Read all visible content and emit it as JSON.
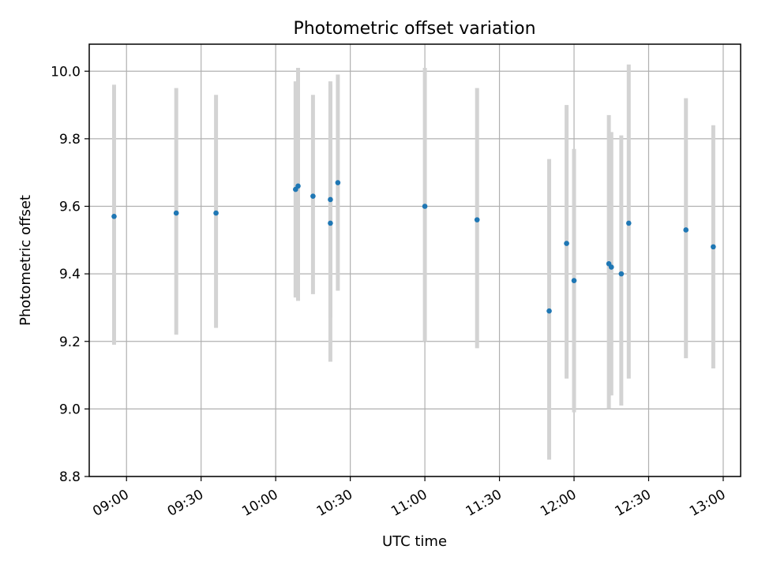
{
  "chart_data": {
    "type": "scatter",
    "title": "Photometric offset variation",
    "xlabel": "UTC time",
    "ylabel": "Photometric offset",
    "xlim": [
      "08:45",
      "13:07"
    ],
    "ylim": [
      8.8,
      10.08
    ],
    "xticks": [
      "09:00",
      "09:30",
      "10:00",
      "10:30",
      "11:00",
      "11:30",
      "12:00",
      "12:30",
      "13:00"
    ],
    "yticks": [
      "8.8",
      "9.0",
      "9.2",
      "9.4",
      "9.6",
      "9.8",
      "10.0"
    ],
    "grid": true,
    "series": [
      {
        "x": [
          "08:55",
          "09:20",
          "09:36",
          "10:08",
          "10:09",
          "10:15",
          "10:22",
          "10:22",
          "10:25",
          "11:00",
          "11:21",
          "11:50",
          "11:57",
          "12:00",
          "12:14",
          "12:15",
          "12:19",
          "12:22",
          "12:45",
          "12:56"
        ],
        "y": [
          9.57,
          9.58,
          9.58,
          9.65,
          9.66,
          9.63,
          9.62,
          9.55,
          9.67,
          9.6,
          9.56,
          9.29,
          9.49,
          9.38,
          9.43,
          9.42,
          9.4,
          9.55,
          9.53,
          9.48
        ],
        "yerr_low": [
          9.19,
          9.22,
          9.24,
          9.33,
          9.32,
          9.34,
          9.27,
          9.14,
          9.35,
          9.2,
          9.18,
          8.85,
          9.09,
          8.99,
          9.0,
          9.04,
          9.01,
          9.09,
          9.15,
          9.12
        ],
        "yerr_high": [
          9.96,
          9.95,
          9.93,
          9.97,
          10.01,
          9.93,
          9.97,
          9.96,
          9.99,
          10.01,
          9.95,
          9.74,
          9.9,
          9.77,
          9.87,
          9.82,
          9.81,
          10.02,
          9.92,
          9.84
        ]
      }
    ]
  }
}
